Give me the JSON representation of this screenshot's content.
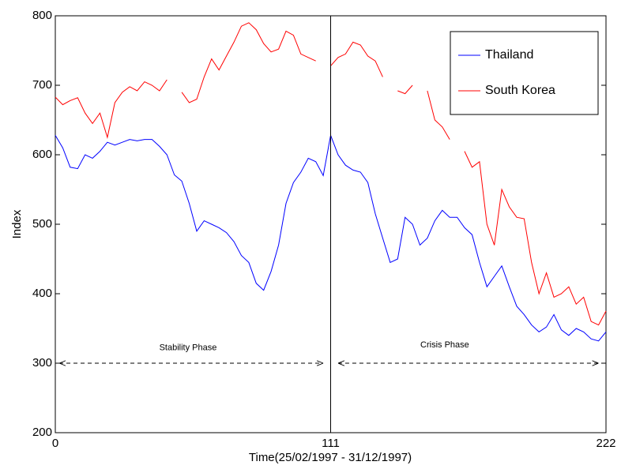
{
  "chart_data": {
    "type": "line",
    "xlabel": "Time(25/02/1997 - 31/12/1997)",
    "ylabel": "Index",
    "x": [
      0,
      3,
      6,
      9,
      12,
      15,
      18,
      21,
      24,
      27,
      30,
      33,
      36,
      39,
      42,
      45,
      48,
      51,
      54,
      57,
      60,
      63,
      66,
      69,
      72,
      75,
      78,
      81,
      84,
      87,
      90,
      93,
      96,
      99,
      102,
      105,
      108,
      111,
      114,
      117,
      120,
      123,
      126,
      129,
      132,
      135,
      138,
      141,
      144,
      147,
      150,
      153,
      156,
      159,
      162,
      165,
      168,
      171,
      174,
      177,
      180,
      183,
      186,
      189,
      192,
      195,
      198,
      201,
      204,
      207,
      210,
      213,
      216,
      219,
      222
    ],
    "series": [
      {
        "name": "Thailand",
        "color": "#0000ff",
        "values": [
          628,
          610,
          582,
          580,
          600,
          595,
          605,
          618,
          614,
          618,
          622,
          620,
          622,
          622,
          612,
          600,
          571,
          562,
          530,
          490,
          505,
          500,
          495,
          488,
          475,
          455,
          445,
          415,
          405,
          432,
          470,
          530,
          560,
          575,
          595,
          590,
          570,
          628,
          600,
          585,
          578,
          575,
          560,
          515,
          480,
          445,
          450,
          510,
          500,
          470,
          480,
          505,
          520,
          510,
          510,
          495,
          485,
          445,
          410,
          425,
          440,
          410,
          382,
          370,
          355,
          345,
          352,
          370,
          348,
          340,
          350,
          345,
          335,
          332,
          345
        ]
      },
      {
        "name": "South Korea",
        "color": "#ff0000",
        "values": [
          683,
          672,
          678,
          682,
          660,
          645,
          660,
          625,
          675,
          690,
          698,
          692,
          705,
          700,
          692,
          708,
          null,
          690,
          675,
          680,
          712,
          738,
          722,
          742,
          762,
          785,
          790,
          780,
          760,
          748,
          752,
          778,
          772,
          745,
          740,
          735,
          null,
          728,
          740,
          745,
          762,
          758,
          742,
          735,
          712,
          null,
          692,
          688,
          700,
          null,
          692,
          650,
          640,
          622,
          null,
          605,
          582,
          590,
          500,
          470,
          550,
          525,
          510,
          508,
          445,
          400,
          430,
          395,
          400,
          410,
          385,
          395,
          360,
          355,
          375
        ]
      }
    ],
    "xlim": [
      0,
      222
    ],
    "xticks": [
      0,
      111,
      222
    ],
    "ylim": [
      200,
      800
    ],
    "yticks": [
      200,
      300,
      400,
      500,
      600,
      700,
      800
    ],
    "vline": 111,
    "annotations": [
      {
        "text": "Stability Phase",
        "x": 53.5,
        "y": 322,
        "arrow_x": [
          1.6,
          108
        ],
        "arrow_y": 300
      },
      {
        "text": "Crisis Phase",
        "x": 157,
        "y": 326,
        "arrow_x": [
          114,
          219
        ],
        "arrow_y": 300
      }
    ],
    "legend": "upper right"
  }
}
